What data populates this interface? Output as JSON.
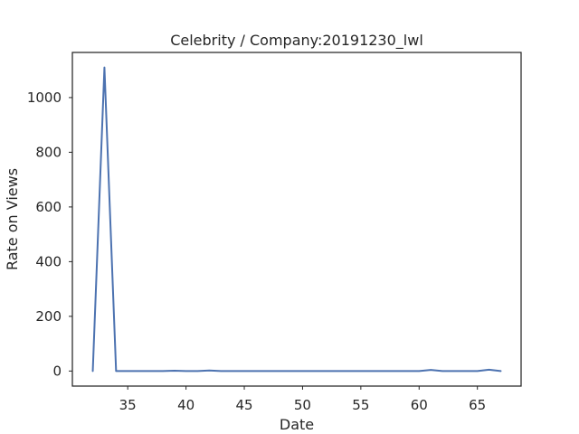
{
  "chart_data": {
    "type": "line",
    "title": "Celebrity / Company:20191230_lwl",
    "xlabel": "Date",
    "ylabel": "Rate on Views",
    "xlim": [
      30.25,
      68.75
    ],
    "ylim": [
      -55,
      1165
    ],
    "xticks": [
      35,
      40,
      45,
      50,
      55,
      60,
      65
    ],
    "yticks": [
      0,
      200,
      400,
      600,
      800,
      1000
    ],
    "grid": false,
    "series": [
      {
        "name": "Rate on Views",
        "color": "#4c72b0",
        "x": [
          32,
          33,
          34,
          35,
          36,
          37,
          38,
          39,
          40,
          41,
          42,
          43,
          44,
          45,
          46,
          47,
          48,
          49,
          50,
          51,
          52,
          53,
          54,
          55,
          56,
          57,
          58,
          59,
          60,
          61,
          62,
          63,
          64,
          65,
          66,
          67
        ],
        "y": [
          0,
          1110,
          0,
          0,
          0,
          0,
          0,
          1,
          0,
          0,
          2,
          0,
          0,
          0,
          0,
          0,
          0,
          0,
          0,
          0,
          0,
          0,
          0,
          0,
          0,
          0,
          0,
          0,
          0,
          4,
          0,
          0,
          0,
          0,
          5,
          0
        ]
      }
    ]
  }
}
